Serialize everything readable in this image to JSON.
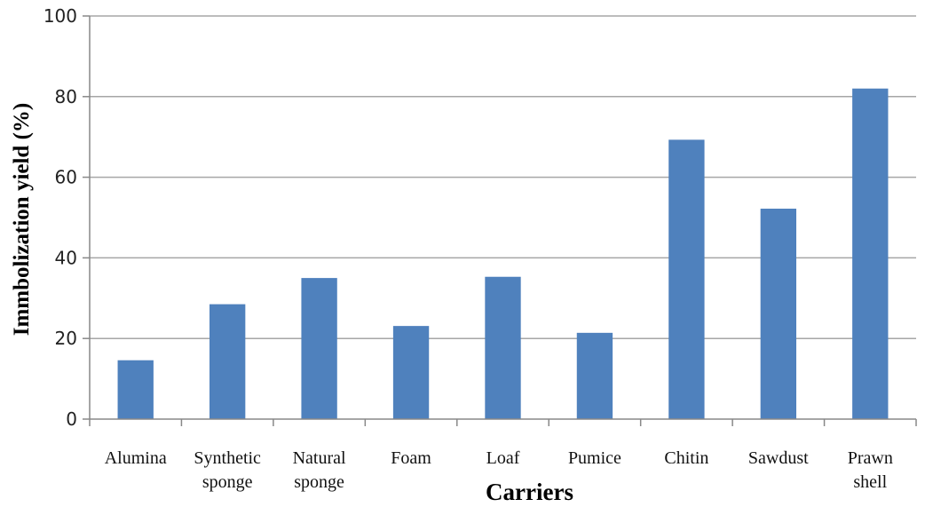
{
  "chart_data": {
    "type": "bar",
    "categories": [
      [
        "Alumina"
      ],
      [
        "Synthetic",
        "sponge"
      ],
      [
        "Natural",
        "sponge"
      ],
      [
        "Foam"
      ],
      [
        "Loaf"
      ],
      [
        "Pumice"
      ],
      [
        "Chitin"
      ],
      [
        "Sawdust"
      ],
      [
        "Prawn",
        "shell"
      ]
    ],
    "values": [
      14.6,
      28.5,
      35.0,
      23.1,
      35.3,
      21.4,
      69.3,
      52.2,
      82.0
    ],
    "xlabel": "Carriers",
    "ylabel": "Immbolization yield (%)",
    "ylim": [
      0,
      100
    ],
    "yticks": [
      0,
      20,
      40,
      60,
      80,
      100
    ],
    "grid": true,
    "legend": "none",
    "bar_color": "#4F81BD",
    "grid_color": "#A6A6A6"
  }
}
